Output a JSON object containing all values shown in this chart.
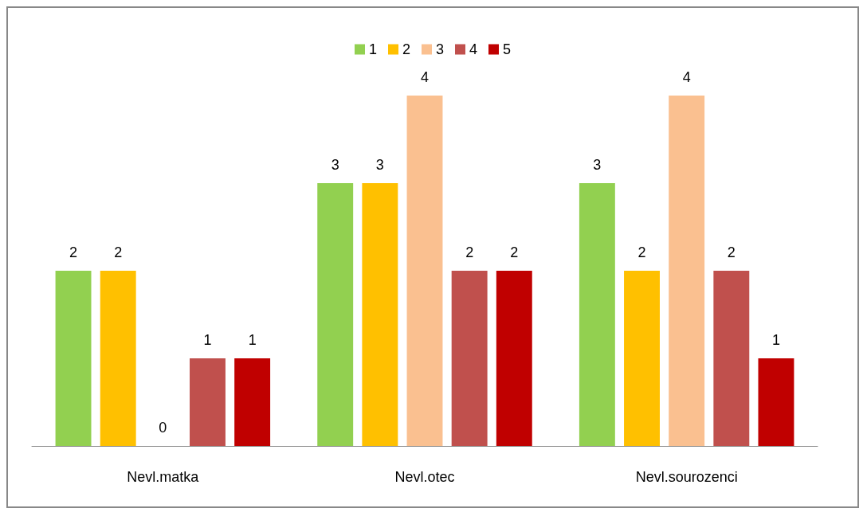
{
  "chart_data": {
    "type": "bar",
    "categories": [
      "Nevl.matka",
      "Nevl.otec",
      "Nevl.sourozenci"
    ],
    "series": [
      {
        "name": "1",
        "color": "#92d050",
        "values": [
          2,
          3,
          3
        ]
      },
      {
        "name": "2",
        "color": "#ffc000",
        "values": [
          2,
          3,
          2
        ]
      },
      {
        "name": "3",
        "color": "#fac090",
        "values": [
          0,
          4,
          4
        ]
      },
      {
        "name": "4",
        "color": "#c0504d",
        "values": [
          1,
          2,
          2
        ]
      },
      {
        "name": "5",
        "color": "#c00000",
        "values": [
          1,
          2,
          1
        ]
      }
    ],
    "data_labels": true,
    "legend": "top"
  }
}
